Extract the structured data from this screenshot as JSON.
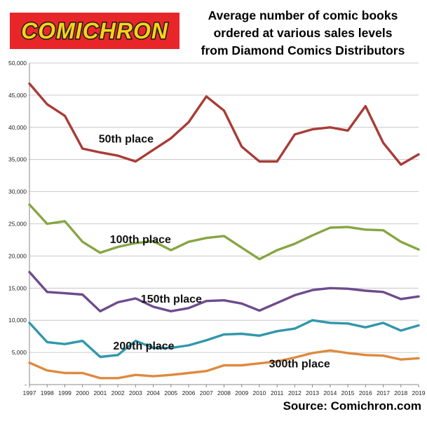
{
  "logo": {
    "text": "COMICHRON"
  },
  "title_lines": [
    "Average number of comic books",
    "ordered at various sales levels",
    "from Diamond Comics Distributors"
  ],
  "source": "Source: Comichron.com",
  "colors": {
    "logo_bg": "#e8262a",
    "logo_text": "#f6d21b",
    "logo_outline": "#1a1a1a",
    "grid": "#bcbcbc",
    "axis": "#888888"
  },
  "chart_data": {
    "type": "line",
    "title": "Average number of comic books ordered at various sales levels from Diamond Comics Distributors",
    "x": [
      "1997",
      "1998",
      "1999",
      "2000",
      "2001",
      "2002",
      "2003",
      "2004",
      "2005",
      "2006",
      "2007",
      "2008",
      "2009",
      "2010",
      "2011",
      "2012",
      "2013",
      "2014",
      "2015",
      "2016",
      "2017",
      "2018",
      "2019"
    ],
    "ylim": [
      0,
      50000
    ],
    "y_ticks": [
      "-",
      "5,000",
      "10,000",
      "15,000",
      "20,000",
      "25,000",
      "30,000",
      "35,000",
      "40,000",
      "45,000",
      "50,000"
    ],
    "grid": true,
    "series": [
      {
        "name": "50th place",
        "color": "#a83c37",
        "values": [
          46800,
          43600,
          41800,
          36700,
          36100,
          35600,
          34700,
          36500,
          38300,
          40800,
          44800,
          42600,
          37000,
          34700,
          34700,
          38900,
          39700,
          40000,
          39500,
          43300,
          37600,
          34200,
          35800
        ]
      },
      {
        "name": "100th place",
        "color": "#86a642",
        "values": [
          28000,
          25000,
          25400,
          22200,
          20500,
          21400,
          22000,
          22300,
          20900,
          22200,
          22800,
          23100,
          21300,
          19500,
          20900,
          21900,
          23200,
          24400,
          24500,
          24100,
          24000,
          22200,
          21000
        ]
      },
      {
        "name": "150th place",
        "color": "#6d4b8d",
        "values": [
          17500,
          14400,
          14200,
          14000,
          11400,
          12800,
          13400,
          12100,
          11400,
          11900,
          13000,
          13100,
          12600,
          11500,
          12700,
          13900,
          14700,
          15000,
          14900,
          14600,
          14400,
          13300,
          13700
        ]
      },
      {
        "name": "200th place",
        "color": "#3197ac",
        "values": [
          9600,
          6600,
          6300,
          6800,
          4300,
          4600,
          6800,
          5700,
          5700,
          6100,
          6900,
          7800,
          7900,
          7600,
          8300,
          8700,
          10000,
          9600,
          9500,
          8900,
          9600,
          8400,
          9200
        ]
      },
      {
        "name": "300th place",
        "color": "#dd8a3f",
        "values": [
          3400,
          2200,
          1800,
          1800,
          1000,
          1000,
          1500,
          1300,
          1500,
          1800,
          2100,
          3000,
          3000,
          3300,
          3600,
          4200,
          4900,
          5300,
          4900,
          4600,
          4500,
          3900,
          4100
        ]
      }
    ]
  }
}
